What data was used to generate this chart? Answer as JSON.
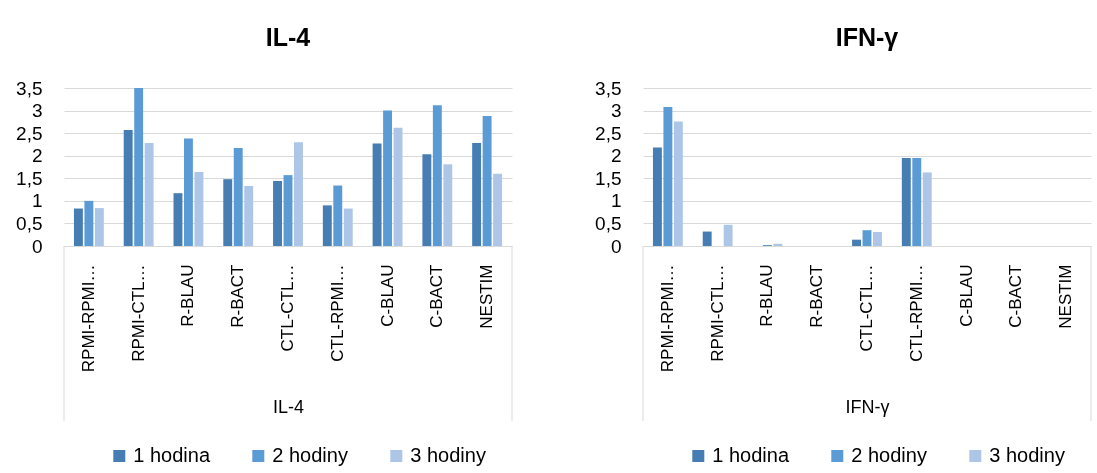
{
  "chart_data": [
    {
      "type": "bar",
      "title": "IL-4",
      "xlabel": "IL-4",
      "categories": [
        "RPMI-RPMI…",
        "RPMI-CTL…",
        "R-BLAU",
        "R-BACT",
        "CTL-CTL…",
        "CTL-RPMI…",
        "C-BLAU",
        "C-BACT",
        "NESTIM"
      ],
      "series": [
        {
          "name": "1 hodina",
          "color": "#467db3",
          "values": [
            0.83,
            2.57,
            1.17,
            1.48,
            1.44,
            0.9,
            2.27,
            2.03,
            2.28
          ]
        },
        {
          "name": "2 hodiny",
          "color": "#5b9bd5",
          "values": [
            1.0,
            3.5,
            2.38,
            2.17,
            1.57,
            1.34,
            3.0,
            3.12,
            2.88
          ]
        },
        {
          "name": "3 hodiny",
          "color": "#adc6e7",
          "values": [
            0.84,
            2.28,
            1.64,
            1.33,
            2.3,
            0.83,
            2.62,
            1.81,
            1.6
          ]
        }
      ],
      "ylim": [
        0,
        3.5
      ],
      "yticks": [
        0,
        {
          "value": 0.5,
          "label": "0,5"
        },
        1,
        {
          "value": 1.5,
          "label": "1,5"
        },
        2,
        {
          "value": 2.5,
          "label": "2,5"
        },
        3,
        {
          "value": 3.5,
          "label": "3,5"
        }
      ],
      "grid": "y",
      "legend": "bottom"
    },
    {
      "type": "bar",
      "title": "IFN-γ",
      "xlabel": "IFN-γ",
      "categories": [
        "RPMI-RPMI…",
        "RPMI-CTL…",
        "R-BLAU",
        "R-BACT",
        "CTL-CTL…",
        "CTL-RPMI…",
        "C-BLAU",
        "C-BACT",
        "NESTIM"
      ],
      "series": [
        {
          "name": "1 hodina",
          "color": "#467db3",
          "values": [
            2.18,
            0.32,
            0,
            0,
            0.14,
            1.95,
            0,
            0,
            0
          ]
        },
        {
          "name": "2 hodiny",
          "color": "#5b9bd5",
          "values": [
            3.08,
            0,
            0.02,
            0,
            0.35,
            1.95,
            0,
            0,
            0
          ]
        },
        {
          "name": "3 hodiny",
          "color": "#adc6e7",
          "values": [
            2.76,
            0.47,
            0.05,
            0,
            0.31,
            1.63,
            0,
            0,
            0
          ]
        }
      ],
      "ylim": [
        0,
        3.5
      ],
      "yticks": [
        0,
        {
          "value": 0.5,
          "label": "0,5"
        },
        1,
        {
          "value": 1.5,
          "label": "1,5"
        },
        2,
        {
          "value": 2.5,
          "label": "2,5"
        },
        3,
        {
          "value": 3.5,
          "label": "3,5"
        }
      ],
      "grid": "y",
      "legend": "bottom"
    }
  ]
}
